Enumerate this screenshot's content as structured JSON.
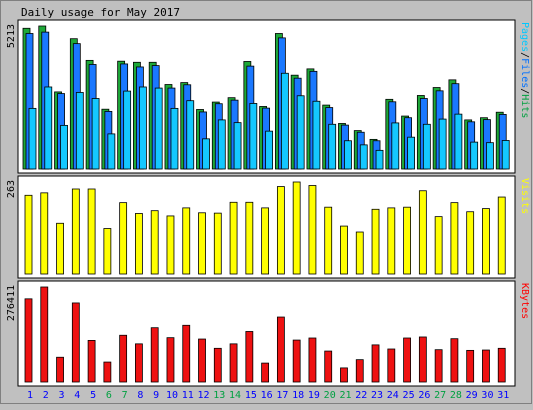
{
  "chart_data": {
    "type": "bar",
    "title": "Daily usage for May 2017",
    "categories": [
      "1",
      "2",
      "3",
      "4",
      "5",
      "6",
      "7",
      "8",
      "9",
      "10",
      "11",
      "12",
      "13",
      "14",
      "15",
      "16",
      "17",
      "18",
      "19",
      "20",
      "21",
      "22",
      "23",
      "24",
      "25",
      "26",
      "27",
      "28",
      "29",
      "30",
      "31"
    ],
    "weekend_days": [
      "6",
      "7",
      "13",
      "14",
      "20",
      "21",
      "27",
      "28"
    ],
    "panels": [
      {
        "name": "hits-files-pages",
        "ymax_label": "5213",
        "ylim": [
          0,
          5213
        ],
        "legend": [
          {
            "text": "Pages",
            "color": "#00c8ff"
          },
          {
            "text": "/",
            "color": "#000000"
          },
          {
            "text": "Files",
            "color": "#0070ff"
          },
          {
            "text": "/",
            "color": "#000000"
          },
          {
            "text": "Hits",
            "color": "#00a040"
          }
        ],
        "series": [
          {
            "name": "Hits",
            "color": "#1ea838",
            "values": [
              5130,
              5213,
              2810,
              4750,
              3960,
              2180,
              3930,
              3890,
              3890,
              3080,
              3150,
              2170,
              2440,
              2600,
              3920,
              2280,
              4940,
              3420,
              3650,
              2330,
              1660,
              1400,
              1080,
              2540,
              1930,
              2680,
              2970,
              3250,
              1790,
              1870,
              2070
            ]
          },
          {
            "name": "Files",
            "color": "#1a78ff",
            "values": [
              4940,
              4990,
              2750,
              4570,
              3810,
              2100,
              3830,
              3720,
              3770,
              2950,
              3070,
              2080,
              2380,
              2510,
              3750,
              2220,
              4780,
              3310,
              3560,
              2240,
              1600,
              1340,
              1030,
              2450,
              1870,
              2570,
              2850,
              3110,
              1720,
              1800,
              1990
            ]
          },
          {
            "name": "Pages",
            "color": "#14c8ff",
            "values": [
              2210,
              2990,
              1590,
              2790,
              2570,
              1280,
              2840,
              2990,
              2950,
              2210,
              2490,
              1100,
              1790,
              1690,
              2390,
              1380,
              3490,
              2670,
              2470,
              1630,
              1030,
              880,
              680,
              1680,
              1160,
              1630,
              1820,
              2000,
              980,
              960,
              1040
            ]
          }
        ]
      },
      {
        "name": "visits",
        "ymax_label": "263",
        "ylim": [
          0,
          263
        ],
        "legend": [
          {
            "text": "Visits",
            "color": "#ffff00"
          }
        ],
        "series": [
          {
            "name": "Visits",
            "color": "#ffff00",
            "values": [
              225,
              232,
              145,
              243,
              243,
              130,
              204,
              173,
              181,
              166,
              189,
              175,
              174,
              205,
              205,
              189,
              250,
              263,
              253,
              191,
              137,
              120,
              185,
              189,
              191,
              238,
              164,
              204,
              178,
              187,
              220
            ]
          }
        ]
      },
      {
        "name": "kbytes",
        "ymax_label": "276411",
        "ylim": [
          0,
          276411
        ],
        "legend": [
          {
            "text": "KBytes",
            "color": "#ff0000"
          }
        ],
        "series": [
          {
            "name": "KBytes",
            "color": "#ee1111",
            "values": [
              242000,
              276411,
              72000,
              230000,
              121000,
              58000,
              136000,
              111000,
              158000,
              129000,
              165000,
              125000,
              98000,
              111000,
              147000,
              55000,
              189000,
              122000,
              128000,
              90000,
              41000,
              65000,
              108000,
              96000,
              128000,
              131000,
              94000,
              126000,
              92000,
              93000,
              98000
            ]
          }
        ]
      }
    ],
    "colors": {
      "background": "#c0c0c0",
      "plot_background": "#ffffff",
      "weekday_label": "#0000ff",
      "weekend_label": "#00a040",
      "text": "#000000"
    }
  }
}
